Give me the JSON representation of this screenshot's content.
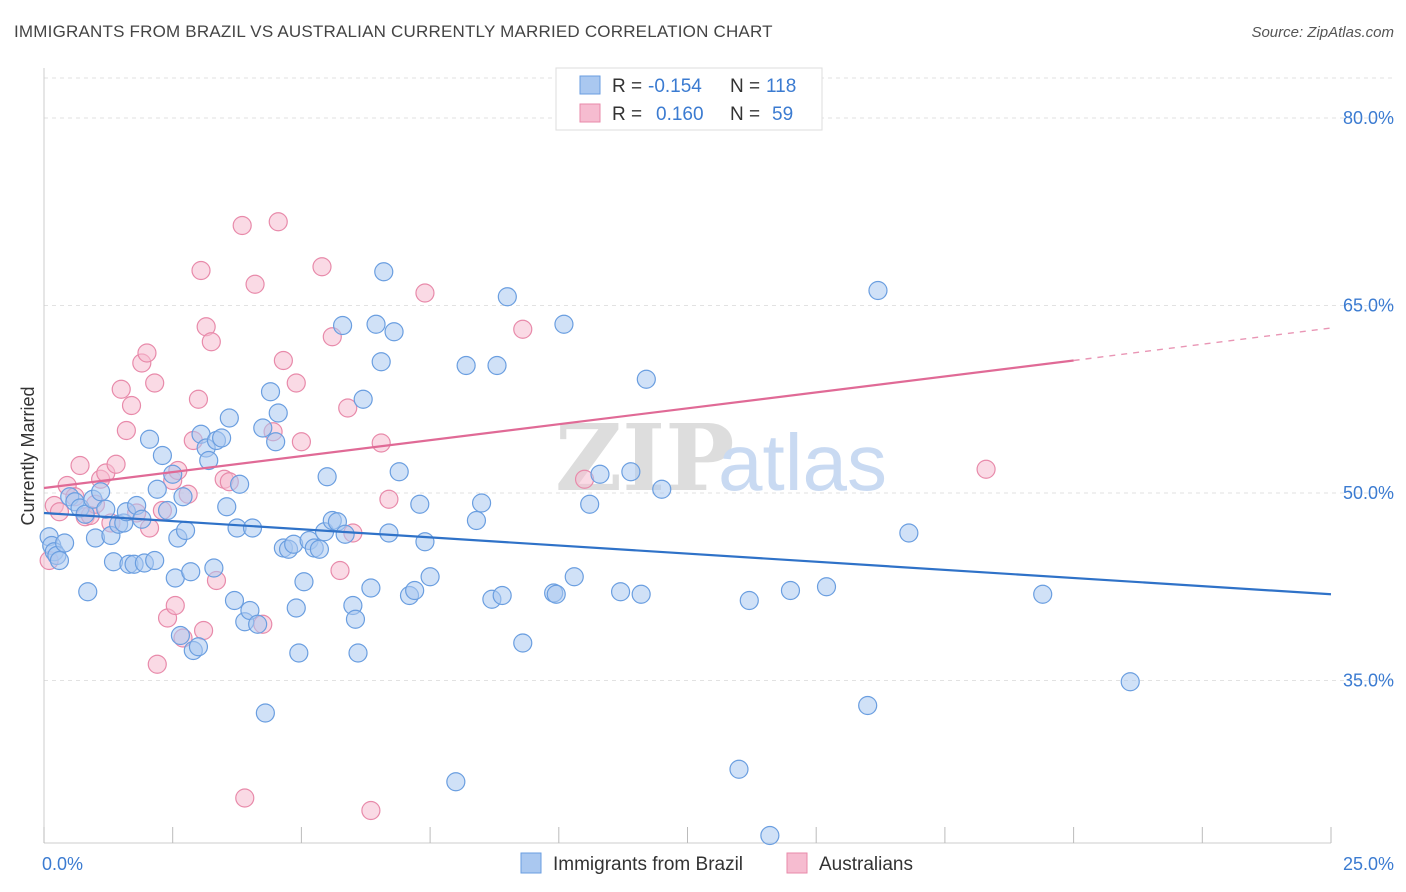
{
  "title": "IMMIGRANTS FROM BRAZIL VS AUSTRALIAN CURRENTLY MARRIED CORRELATION CHART",
  "source": "Source: ZipAtlas.com",
  "watermark": {
    "zip": "ZIP",
    "atlas": "atlas"
  },
  "legend": {
    "rows": [
      {
        "r_label": "R =",
        "r_value": "-0.154",
        "n_label": "N =",
        "n_value": "118"
      },
      {
        "r_label": "R =",
        "r_value": "0.160",
        "n_label": "N =",
        "n_value": "59"
      }
    ]
  },
  "bottom_legend": [
    "Immigrants from Brazil",
    "Australians"
  ],
  "colors": {
    "blue_fill": "#aac8f0",
    "blue_stroke": "#6a9ee0",
    "blue_line": "#2f72c8",
    "pink_fill": "#f6bcd0",
    "pink_stroke": "#e88aaa",
    "pink_line": "#e06a96",
    "label_blue": "#3b7bd1"
  },
  "chart_data": {
    "type": "scatter",
    "title": "IMMIGRANTS FROM BRAZIL VS AUSTRALIAN CURRENTLY MARRIED CORRELATION CHART",
    "xlabel": "",
    "ylabel": "Currently Married",
    "xlim": [
      0,
      25
    ],
    "ylim": [
      22,
      84
    ],
    "x_tick_labels": [
      "0.0%",
      "25.0%"
    ],
    "y_ticks": [
      35,
      50,
      65,
      80
    ],
    "y_tick_labels": [
      "35.0%",
      "50.0%",
      "65.0%",
      "80.0%"
    ],
    "grid": true,
    "legend_position": "top-center",
    "series": [
      {
        "name": "Immigrants from Brazil",
        "color": "#aac8f0",
        "r": "-0.154",
        "n": "118",
        "trend": {
          "x": [
            0,
            25
          ],
          "y": [
            48.4,
            41.9
          ]
        },
        "points": [
          [
            0.1,
            46.5
          ],
          [
            0.15,
            45.8
          ],
          [
            0.2,
            45.3
          ],
          [
            0.25,
            45.0
          ],
          [
            0.3,
            44.6
          ],
          [
            0.4,
            46.0
          ],
          [
            0.5,
            49.7
          ],
          [
            0.6,
            49.3
          ],
          [
            0.7,
            48.8
          ],
          [
            0.8,
            48.3
          ],
          [
            0.85,
            42.1
          ],
          [
            0.95,
            49.5
          ],
          [
            1.0,
            46.4
          ],
          [
            1.1,
            50.1
          ],
          [
            1.2,
            48.7
          ],
          [
            1.3,
            46.6
          ],
          [
            1.35,
            44.5
          ],
          [
            1.45,
            47.5
          ],
          [
            1.55,
            47.6
          ],
          [
            1.6,
            48.5
          ],
          [
            1.65,
            44.3
          ],
          [
            1.75,
            44.3
          ],
          [
            1.8,
            49.0
          ],
          [
            1.9,
            47.9
          ],
          [
            1.95,
            44.4
          ],
          [
            2.05,
            54.3
          ],
          [
            2.15,
            44.6
          ],
          [
            2.2,
            50.3
          ],
          [
            2.3,
            53.0
          ],
          [
            2.4,
            48.6
          ],
          [
            2.5,
            51.5
          ],
          [
            2.55,
            43.2
          ],
          [
            2.6,
            46.4
          ],
          [
            2.65,
            38.6
          ],
          [
            2.7,
            49.7
          ],
          [
            2.75,
            47.0
          ],
          [
            2.85,
            43.7
          ],
          [
            2.9,
            37.4
          ],
          [
            3.0,
            37.7
          ],
          [
            3.05,
            54.7
          ],
          [
            3.15,
            53.6
          ],
          [
            3.2,
            52.6
          ],
          [
            3.3,
            44.0
          ],
          [
            3.35,
            54.2
          ],
          [
            3.45,
            54.4
          ],
          [
            3.55,
            48.9
          ],
          [
            3.6,
            56.0
          ],
          [
            3.7,
            41.4
          ],
          [
            3.75,
            47.2
          ],
          [
            3.8,
            50.7
          ],
          [
            3.9,
            39.7
          ],
          [
            4.0,
            40.6
          ],
          [
            4.05,
            47.2
          ],
          [
            4.15,
            39.5
          ],
          [
            4.25,
            55.2
          ],
          [
            4.3,
            32.4
          ],
          [
            4.4,
            58.1
          ],
          [
            4.5,
            54.1
          ],
          [
            4.55,
            56.4
          ],
          [
            4.65,
            45.6
          ],
          [
            4.75,
            45.5
          ],
          [
            4.85,
            45.9
          ],
          [
            4.9,
            40.8
          ],
          [
            4.95,
            37.2
          ],
          [
            5.05,
            42.9
          ],
          [
            5.15,
            46.2
          ],
          [
            5.25,
            45.6
          ],
          [
            5.35,
            45.5
          ],
          [
            5.45,
            46.9
          ],
          [
            5.5,
            51.3
          ],
          [
            5.6,
            47.8
          ],
          [
            5.7,
            47.7
          ],
          [
            5.8,
            63.4
          ],
          [
            5.85,
            46.7
          ],
          [
            6.0,
            41.0
          ],
          [
            6.05,
            39.9
          ],
          [
            6.1,
            37.2
          ],
          [
            6.2,
            57.5
          ],
          [
            6.35,
            42.4
          ],
          [
            6.45,
            63.5
          ],
          [
            6.55,
            60.5
          ],
          [
            6.6,
            67.7
          ],
          [
            6.7,
            46.8
          ],
          [
            6.8,
            62.9
          ],
          [
            6.9,
            51.7
          ],
          [
            7.1,
            41.8
          ],
          [
            7.2,
            42.2
          ],
          [
            7.3,
            49.1
          ],
          [
            7.4,
            46.1
          ],
          [
            7.5,
            43.3
          ],
          [
            8.0,
            26.9
          ],
          [
            8.2,
            60.2
          ],
          [
            8.4,
            47.8
          ],
          [
            8.5,
            49.2
          ],
          [
            8.7,
            41.5
          ],
          [
            8.8,
            60.2
          ],
          [
            8.9,
            41.8
          ],
          [
            9.0,
            65.7
          ],
          [
            9.3,
            38.0
          ],
          [
            9.9,
            42.0
          ],
          [
            9.95,
            41.9
          ],
          [
            10.1,
            63.5
          ],
          [
            10.3,
            43.3
          ],
          [
            10.6,
            49.1
          ],
          [
            10.8,
            51.5
          ],
          [
            11.2,
            42.1
          ],
          [
            11.4,
            51.7
          ],
          [
            11.6,
            41.9
          ],
          [
            11.7,
            59.1
          ],
          [
            12.0,
            50.3
          ],
          [
            13.5,
            27.9
          ],
          [
            13.7,
            41.4
          ],
          [
            14.1,
            22.6
          ],
          [
            14.5,
            42.2
          ],
          [
            15.2,
            42.5
          ],
          [
            16.0,
            33.0
          ],
          [
            16.2,
            66.2
          ],
          [
            16.8,
            46.8
          ],
          [
            19.4,
            41.9
          ],
          [
            21.1,
            34.9
          ]
        ]
      },
      {
        "name": "Australians",
        "color": "#f6bcd0",
        "r": "0.160",
        "n": "59",
        "trend": {
          "x": [
            0,
            20
          ],
          "y": [
            50.4,
            60.6
          ]
        },
        "trend_extension": {
          "x": [
            20,
            25
          ],
          "y": [
            60.6,
            63.2
          ]
        },
        "points": [
          [
            0.1,
            44.6
          ],
          [
            0.2,
            49.0
          ],
          [
            0.3,
            48.5
          ],
          [
            0.45,
            50.6
          ],
          [
            0.6,
            49.7
          ],
          [
            0.7,
            52.2
          ],
          [
            0.8,
            48.1
          ],
          [
            0.9,
            48.2
          ],
          [
            1.0,
            49.1
          ],
          [
            1.1,
            51.1
          ],
          [
            1.2,
            51.6
          ],
          [
            1.3,
            47.6
          ],
          [
            1.4,
            52.3
          ],
          [
            1.5,
            58.3
          ],
          [
            1.6,
            55.0
          ],
          [
            1.7,
            57.0
          ],
          [
            1.8,
            48.4
          ],
          [
            1.9,
            60.4
          ],
          [
            2.0,
            61.2
          ],
          [
            2.05,
            47.2
          ],
          [
            2.15,
            58.8
          ],
          [
            2.2,
            36.3
          ],
          [
            2.3,
            48.6
          ],
          [
            2.4,
            40.0
          ],
          [
            2.5,
            51.0
          ],
          [
            2.55,
            41.0
          ],
          [
            2.6,
            51.8
          ],
          [
            2.7,
            38.4
          ],
          [
            2.8,
            49.9
          ],
          [
            2.9,
            54.2
          ],
          [
            3.0,
            57.5
          ],
          [
            3.05,
            67.8
          ],
          [
            3.1,
            39.0
          ],
          [
            3.15,
            63.3
          ],
          [
            3.25,
            62.1
          ],
          [
            3.35,
            43.0
          ],
          [
            3.5,
            51.1
          ],
          [
            3.6,
            50.9
          ],
          [
            3.85,
            71.4
          ],
          [
            3.9,
            25.6
          ],
          [
            4.1,
            66.7
          ],
          [
            4.25,
            39.5
          ],
          [
            4.45,
            54.9
          ],
          [
            4.55,
            71.7
          ],
          [
            4.65,
            60.6
          ],
          [
            4.9,
            58.8
          ],
          [
            5.0,
            54.1
          ],
          [
            5.4,
            68.1
          ],
          [
            5.6,
            62.5
          ],
          [
            5.75,
            43.8
          ],
          [
            5.9,
            56.8
          ],
          [
            6.0,
            46.8
          ],
          [
            6.35,
            24.6
          ],
          [
            6.55,
            54.0
          ],
          [
            6.7,
            49.5
          ],
          [
            7.4,
            66.0
          ],
          [
            9.3,
            63.1
          ],
          [
            10.5,
            51.1
          ],
          [
            18.3,
            51.9
          ]
        ]
      }
    ]
  }
}
